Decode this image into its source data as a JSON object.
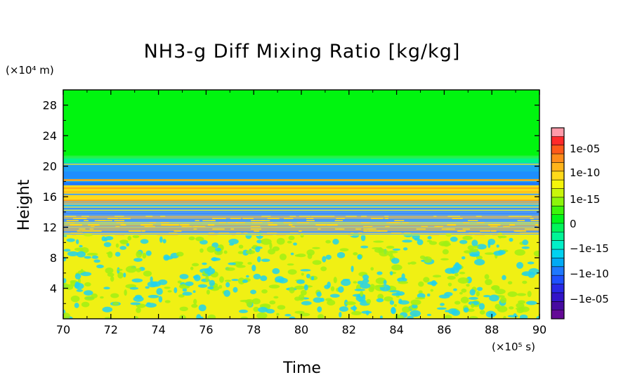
{
  "chart_data": {
    "type": "heatmap",
    "title": "NH3-g Diff Mixing Ratio [kg/kg]",
    "xlabel": "Time",
    "ylabel": "Height",
    "x_unit": "(×10⁵ s)",
    "y_unit": "(×10⁴ m)",
    "xlim": [
      70,
      90
    ],
    "ylim": [
      0,
      30
    ],
    "x_ticks": [
      "70",
      "72",
      "74",
      "76",
      "78",
      "80",
      "82",
      "84",
      "86",
      "88",
      "90"
    ],
    "y_ticks": [
      "4",
      "8",
      "12",
      "16",
      "20",
      "24",
      "28"
    ],
    "colorbar": {
      "labels": [
        "1e-05",
        "1e-10",
        "1e-15",
        "0",
        "−1e-15",
        "−1e-10",
        "−1e-05"
      ],
      "colors": [
        "#ff9aa8",
        "#ff2a2a",
        "#ff5a1a",
        "#ff8c1a",
        "#ffb41a",
        "#ffd91a",
        "#f5f50a",
        "#c8f50a",
        "#8cf50a",
        "#3cf50a",
        "#00f51a",
        "#00f55a",
        "#00f596",
        "#00f0c8",
        "#00d2f0",
        "#00aaf5",
        "#1e78ff",
        "#1e50ff",
        "#2828e6",
        "#3214c8",
        "#460aa0",
        "#640a96"
      ]
    },
    "regions": [
      {
        "y_from": 21.2,
        "y_to": 30.0,
        "value": "0",
        "color": "#00f50f"
      },
      {
        "y_from": 20.4,
        "y_to": 21.2,
        "value": "0",
        "color": "#00f58a"
      },
      {
        "y_from": 17.5,
        "y_to": 20.4,
        "value": "−1e-12",
        "color": "#1ea0f5"
      },
      {
        "y_from": 15.5,
        "y_to": 17.5,
        "value": "1e-15",
        "color": "#ffd91a"
      },
      {
        "y_from": 11.0,
        "y_to": 15.5,
        "value": "mixed",
        "color": "#64aaf0"
      },
      {
        "y_from": 0.0,
        "y_to": 11.0,
        "value": "±1e-16",
        "color": "#f0f014"
      }
    ]
  }
}
